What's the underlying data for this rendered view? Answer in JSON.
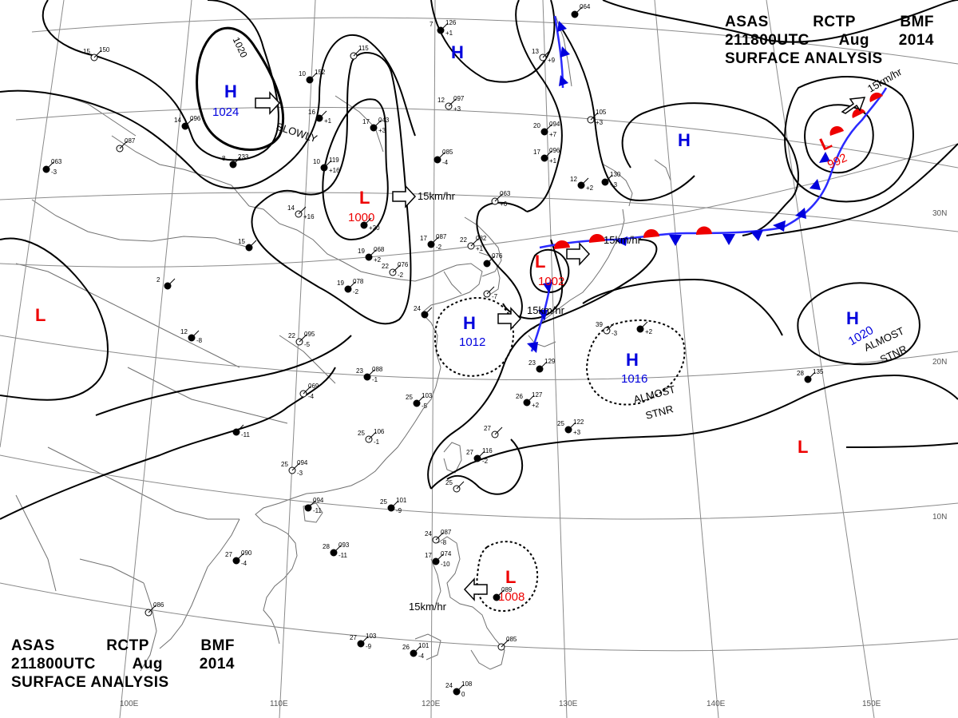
{
  "header_top": {
    "line1": [
      "ASAS",
      "RCTP",
      "BMF"
    ],
    "line2": [
      "211800UTC",
      "Aug",
      "2014"
    ],
    "line3": "SURFACE ANALYSIS"
  },
  "header_bottom": {
    "line1": [
      "ASAS",
      "RCTP",
      "BMF"
    ],
    "line2": [
      "211800UTC",
      "Aug",
      "2014"
    ],
    "line3": "SURFACE ANALYSIS"
  },
  "colors": {
    "high": "#0000dd",
    "low": "#ee0000",
    "isobar": "#000000",
    "grid": "#808080",
    "coast": "#707070",
    "cold_front": "#0000dd",
    "warm_front": "#ee0000"
  },
  "lon_labels": [
    "100E",
    "110E",
    "120E",
    "130E",
    "140E",
    "150E"
  ],
  "lat_labels": [
    "30N",
    "20N",
    "10N"
  ],
  "isobar_labels": [
    "1020"
  ],
  "pressure_centers": [
    {
      "type": "H",
      "value": "1024"
    },
    {
      "type": "L",
      "value": "1000"
    },
    {
      "type": "H",
      "value": ""
    },
    {
      "type": "H",
      "value": ""
    },
    {
      "type": "L",
      "value": "992"
    },
    {
      "type": "L",
      "value": "1002"
    },
    {
      "type": "H",
      "value": "1012"
    },
    {
      "type": "H",
      "value": "1016"
    },
    {
      "type": "H",
      "value": "1020"
    },
    {
      "type": "L",
      "value": ""
    },
    {
      "type": "L",
      "value": ""
    },
    {
      "type": "L",
      "value": "1008"
    }
  ],
  "motion_labels": [
    "SLOWLY",
    "15km/hr",
    "15km/hr",
    "15km/hr",
    "15km/hr",
    "15km/hr"
  ],
  "stationary_labels": [
    {
      "line1": "ALMOST",
      "line2": "STNR"
    },
    {
      "line1": "ALMOST",
      "line2": "STNR"
    }
  ],
  "stations": [
    {
      "t": "15",
      "p": "150",
      "d": ""
    },
    {
      "t": "10",
      "p": "152",
      "d": ""
    },
    {
      "t": "14",
      "p": "096",
      "d": ""
    },
    {
      "t": "",
      "p": "087",
      "d": ""
    },
    {
      "t": "",
      "p": "063",
      "d": "-3"
    },
    {
      "t": "8",
      "p": "233",
      "d": ""
    },
    {
      "t": "",
      "p": "115",
      "d": ""
    },
    {
      "t": "16",
      "p": "",
      "d": "+1"
    },
    {
      "t": "17",
      "p": "043",
      "d": "+3"
    },
    {
      "t": "12",
      "p": "097",
      "d": "+3"
    },
    {
      "t": "7",
      "p": "126",
      "d": "+1"
    },
    {
      "t": "10",
      "p": "119",
      "d": "+16"
    },
    {
      "t": "14",
      "p": "",
      "d": "+16"
    },
    {
      "t": "",
      "p": "085",
      "d": "-4"
    },
    {
      "t": "",
      "p": "064",
      "d": ""
    },
    {
      "t": "13",
      "p": "",
      "d": "+9"
    },
    {
      "t": "20",
      "p": "094",
      "d": "+7"
    },
    {
      "t": "17",
      "p": "096",
      "d": "+1"
    },
    {
      "t": "",
      "p": "105",
      "d": "+3"
    },
    {
      "t": "",
      "p": "130",
      "d": "+3"
    },
    {
      "t": "12",
      "p": "",
      "d": "+2"
    },
    {
      "t": "",
      "p": "063",
      "d": "+6"
    },
    {
      "t": "",
      "p": "",
      "d": "+20"
    },
    {
      "t": "17",
      "p": "087",
      "d": "-2"
    },
    {
      "t": "22",
      "p": "082",
      "d": "+1"
    },
    {
      "t": "19",
      "p": "068",
      "d": "+2"
    },
    {
      "t": "15",
      "p": "",
      "d": ""
    },
    {
      "t": "22",
      "p": "076",
      "d": "-2"
    },
    {
      "t": "19",
      "p": "078",
      "d": "-2"
    },
    {
      "t": "",
      "p": "076",
      "d": ""
    },
    {
      "t": "",
      "p": "",
      "d": "-7"
    },
    {
      "t": "24",
      "p": "",
      "d": ""
    },
    {
      "t": "2",
      "p": "",
      "d": ""
    },
    {
      "t": "22",
      "p": "095",
      "d": "-5"
    },
    {
      "t": "12",
      "p": "",
      "d": "-8"
    },
    {
      "t": "23",
      "p": "088",
      "d": "-1"
    },
    {
      "t": "",
      "p": "069",
      "d": "-4"
    },
    {
      "t": "25",
      "p": "103",
      "d": "-5"
    },
    {
      "t": "",
      "p": "",
      "d": "-11"
    },
    {
      "t": "25",
      "p": "106",
      "d": "-1"
    },
    {
      "t": "26",
      "p": "127",
      "d": "+2"
    },
    {
      "t": "25",
      "p": "122",
      "d": "+3"
    },
    {
      "t": "27",
      "p": "",
      "d": ""
    },
    {
      "t": "27",
      "p": "116",
      "d": "-2"
    },
    {
      "t": "23",
      "p": "129",
      "d": ""
    },
    {
      "t": "39",
      "p": "",
      "d": "-3"
    },
    {
      "t": "",
      "p": "",
      "d": "+2"
    },
    {
      "t": "28",
      "p": "135",
      "d": ""
    },
    {
      "t": "25",
      "p": "094",
      "d": "-3"
    },
    {
      "t": "",
      "p": "094",
      "d": "-11"
    },
    {
      "t": "25",
      "p": "101",
      "d": "-9"
    },
    {
      "t": "25",
      "p": "",
      "d": ""
    },
    {
      "t": "28",
      "p": "093",
      "d": "-11"
    },
    {
      "t": "27",
      "p": "090",
      "d": "-4"
    },
    {
      "t": "24",
      "p": "087",
      "d": "-8"
    },
    {
      "t": "17",
      "p": "074",
      "d": "-10"
    },
    {
      "t": "",
      "p": "089",
      "d": ""
    },
    {
      "t": "",
      "p": "086",
      "d": ""
    },
    {
      "t": "27",
      "p": "103",
      "d": "-9"
    },
    {
      "t": "26",
      "p": "101",
      "d": "-4"
    },
    {
      "t": "",
      "p": "085",
      "d": ""
    },
    {
      "t": "24",
      "p": "108",
      "d": "0"
    }
  ]
}
